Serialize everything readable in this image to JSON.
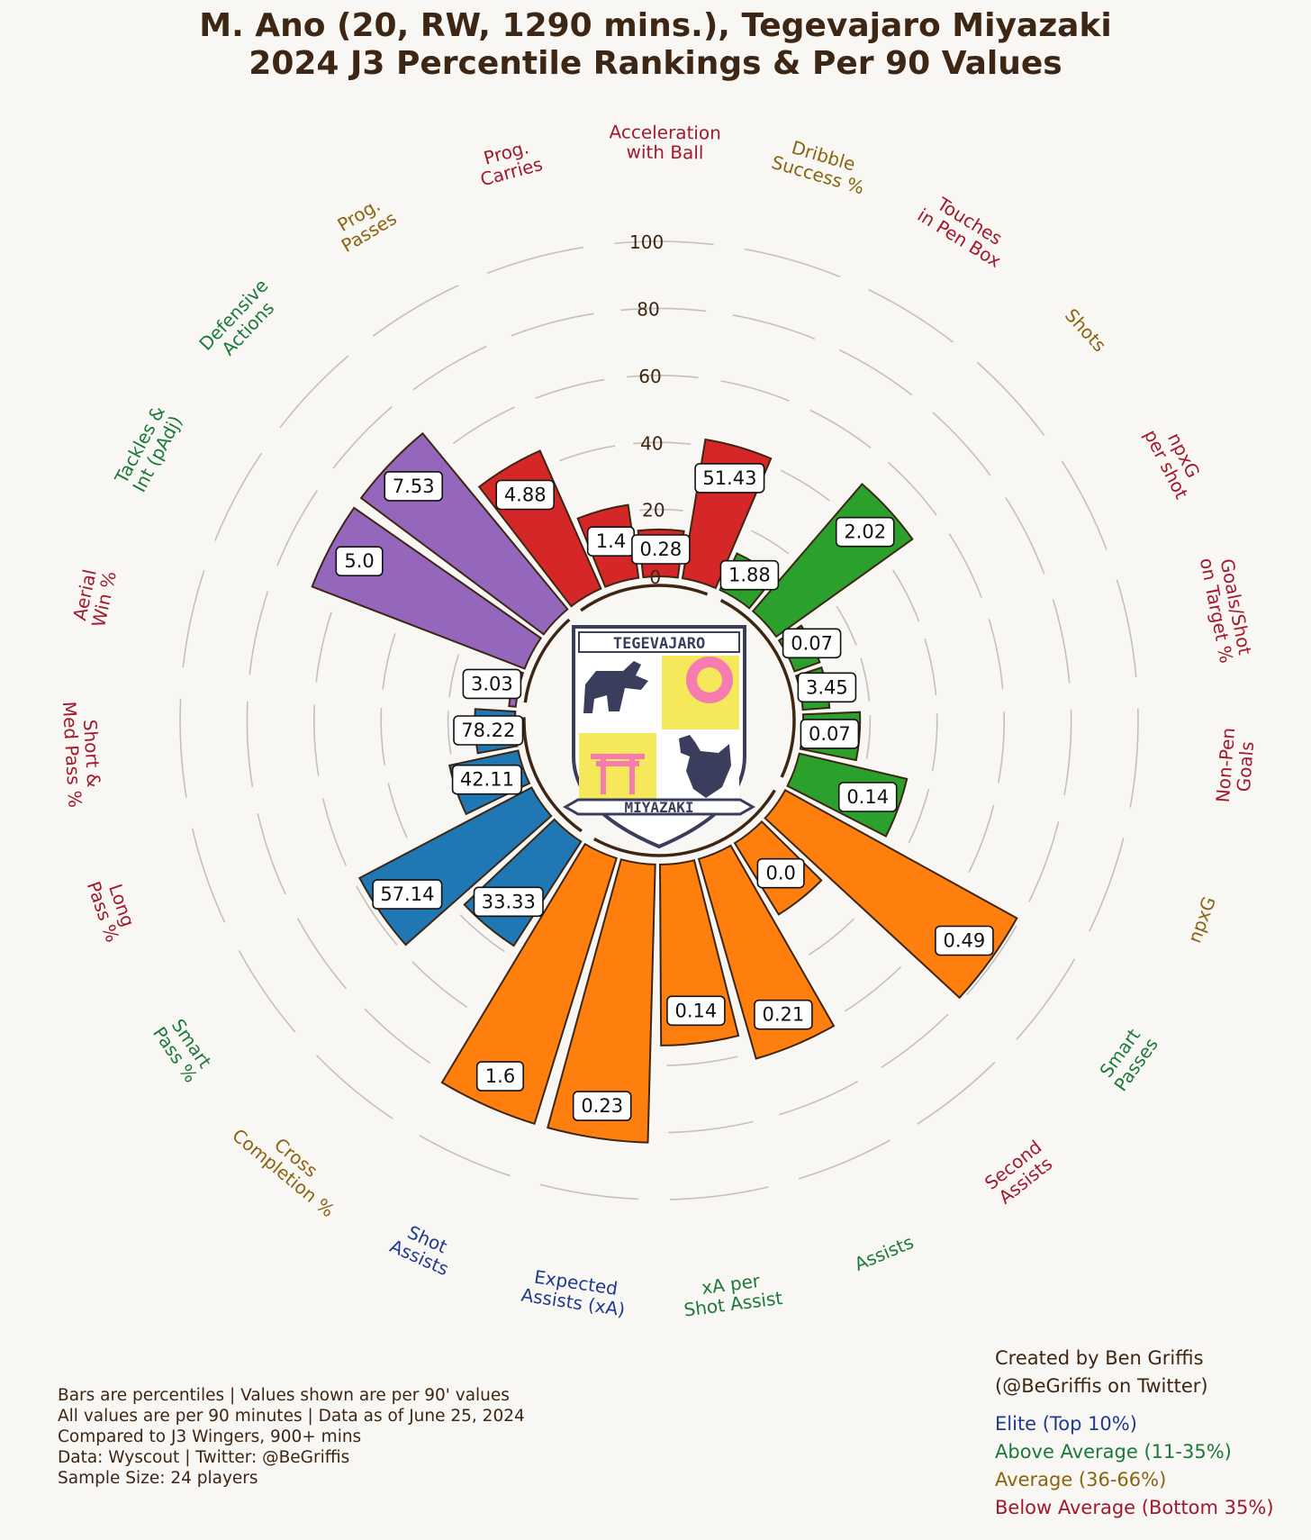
{
  "title": {
    "line1": "M. Ano (20, RW, 1290 mins.), Tegevajaro Miyazaki",
    "line2": "2024 J3 Percentile Rankings & Per 90 Values"
  },
  "notes": [
    "Bars are percentiles | Values shown are per 90' values",
    "All values are per 90 minutes | Data as of June 25, 2024",
    "Compared to J3 Wingers, 900+ mins",
    "Data: Wyscout | Twitter: @BeGriffis",
    "Sample Size: 24 players"
  ],
  "credit": [
    "Created by Ben Griffis",
    "(@BeGriffis on Twitter)"
  ],
  "legend": [
    {
      "label": "Elite (Top 10%)",
      "color": "#1f3a93"
    },
    {
      "label": "Above Average (11-35%)",
      "color": "#1a7a3a"
    },
    {
      "label": "Average (36-66%)",
      "color": "#8a6410"
    },
    {
      "label": "Below Average (Bottom 35%)",
      "color": "#a3182c"
    }
  ],
  "logo": {
    "top_text": "TEGEVAJARO",
    "bottom_text": "MIYAZAKI"
  },
  "chart_data": {
    "type": "polar-bar",
    "radial_ticks": [
      "0",
      "20",
      "40",
      "60",
      "80",
      "100"
    ],
    "rlim": [
      0,
      100
    ],
    "metrics": [
      {
        "name": "Aerial Win %",
        "value": "3.03",
        "percentile": 2,
        "group": "defending",
        "tier": "below"
      },
      {
        "name": "Tackles & Int (pAdj)",
        "value": "5.0",
        "percentile": 68,
        "group": "defending",
        "tier": "above"
      },
      {
        "name": "Defensive Actions",
        "value": "7.53",
        "percentile": 68,
        "group": "defending",
        "tier": "above"
      },
      {
        "name": "Prog. Passes",
        "value": "4.88",
        "percentile": 45,
        "group": "carrying",
        "tier": "average"
      },
      {
        "name": "Prog. Carries",
        "value": "1.4",
        "percentile": 22,
        "group": "carrying",
        "tier": "below"
      },
      {
        "name": "Acceleration with Ball",
        "value": "0.28",
        "percentile": 14,
        "group": "carrying",
        "tier": "below"
      },
      {
        "name": "Dribble Success %",
        "value": "51.43",
        "percentile": 42,
        "group": "carrying",
        "tier": "average"
      },
      {
        "name": "Touches in Pen Box",
        "value": "1.88",
        "percentile": 12,
        "group": "shooting",
        "tier": "below"
      },
      {
        "name": "Shots",
        "value": "2.02",
        "percentile": 50,
        "group": "shooting",
        "tier": "average"
      },
      {
        "name": "npxG per shot",
        "value": "0.07",
        "percentile": 8,
        "group": "shooting",
        "tier": "below"
      },
      {
        "name": "Goals/Shot on Target %",
        "value": "3.45",
        "percentile": 8,
        "group": "shooting",
        "tier": "below"
      },
      {
        "name": "Non-Pen Goals",
        "value": "0.07",
        "percentile": 17,
        "group": "shooting",
        "tier": "below"
      },
      {
        "name": "npxG",
        "value": "0.14",
        "percentile": 33,
        "group": "shooting",
        "tier": "average"
      },
      {
        "name": "Smart Passes",
        "value": "0.49",
        "percentile": 79,
        "group": "creating",
        "tier": "above"
      },
      {
        "name": "Second Assists",
        "value": "0.0",
        "percentile": 25,
        "group": "creating",
        "tier": "below"
      },
      {
        "name": "Assists",
        "value": "0.21",
        "percentile": 62,
        "group": "creating",
        "tier": "above"
      },
      {
        "name": "xA per Shot Assist",
        "value": "0.14",
        "percentile": 54,
        "group": "creating",
        "tier": "above"
      },
      {
        "name": "Expected Assists (xA)",
        "value": "0.23",
        "percentile": 83,
        "group": "creating",
        "tier": "elite"
      },
      {
        "name": "Shot Assists",
        "value": "1.6",
        "percentile": 83,
        "group": "creating",
        "tier": "elite"
      },
      {
        "name": "Cross Completion %",
        "value": "33.33",
        "percentile": 37,
        "group": "passing",
        "tier": "average"
      },
      {
        "name": "Smart Pass %",
        "value": "57.14",
        "percentile": 58,
        "group": "passing",
        "tier": "above"
      },
      {
        "name": "Long Pass %",
        "value": "42.11",
        "percentile": 21,
        "group": "passing",
        "tier": "below"
      },
      {
        "name": "Short & Med Pass %",
        "value": "78.22",
        "percentile": 12,
        "group": "passing",
        "tier": "below"
      }
    ],
    "group_colors": {
      "defending": "#9467bd",
      "carrying": "#d62728",
      "shooting": "#2ca02c",
      "creating": "#ff7f0e",
      "passing": "#1f77b4"
    },
    "tier_colors": {
      "elite": "#1f3a93",
      "above": "#1a7a3a",
      "average": "#8a6410",
      "below": "#a3182c"
    }
  }
}
